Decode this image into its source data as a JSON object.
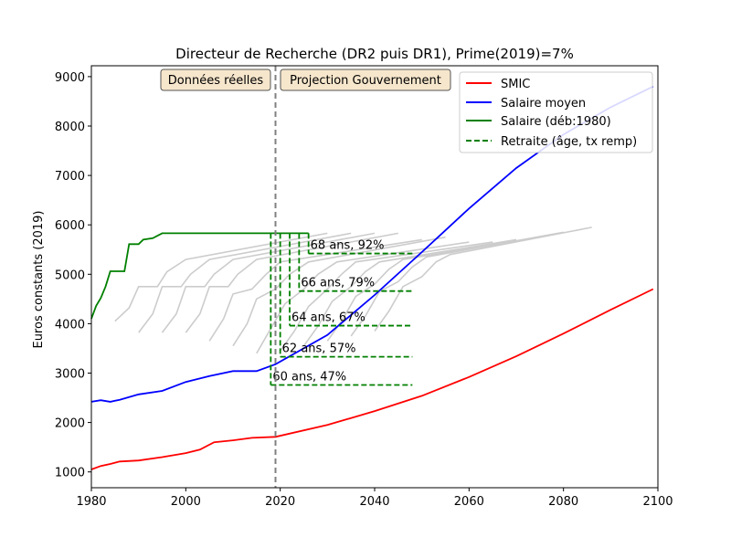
{
  "chart_data": {
    "type": "line",
    "title": "Directeur de Recherche (DR2 puis DR1), Prime(2019)=7%",
    "xlabel": "",
    "ylabel": "Euros constants (2019)",
    "xlim": [
      1980,
      2100
    ],
    "ylim": [
      680,
      9220
    ],
    "xticks": [
      1980,
      2000,
      2020,
      2040,
      2060,
      2080,
      2100
    ],
    "yticks": [
      1000,
      2000,
      3000,
      4000,
      5000,
      6000,
      7000,
      8000,
      9000
    ],
    "grid": false,
    "legend": "top-right",
    "divider_year": 2019,
    "region_labels": {
      "left": "Données réelles",
      "right": "Projection Gouvernement"
    },
    "series": [
      {
        "name": "SMIC",
        "color": "#ff0000",
        "points": [
          [
            1980,
            1050
          ],
          [
            1982,
            1120
          ],
          [
            1984,
            1160
          ],
          [
            1986,
            1210
          ],
          [
            1990,
            1230
          ],
          [
            1995,
            1300
          ],
          [
            2000,
            1380
          ],
          [
            2003,
            1450
          ],
          [
            2006,
            1600
          ],
          [
            2010,
            1640
          ],
          [
            2014,
            1690
          ],
          [
            2019,
            1710
          ],
          [
            2030,
            1950
          ],
          [
            2040,
            2230
          ],
          [
            2050,
            2540
          ],
          [
            2060,
            2920
          ],
          [
            2070,
            3340
          ],
          [
            2080,
            3800
          ],
          [
            2090,
            4280
          ],
          [
            2099,
            4700
          ]
        ]
      },
      {
        "name": "Salaire moyen",
        "color": "#0000ff",
        "points": [
          [
            1980,
            2420
          ],
          [
            1982,
            2450
          ],
          [
            1984,
            2420
          ],
          [
            1986,
            2460
          ],
          [
            1990,
            2570
          ],
          [
            1995,
            2640
          ],
          [
            2000,
            2820
          ],
          [
            2005,
            2940
          ],
          [
            2010,
            3040
          ],
          [
            2015,
            3040
          ],
          [
            2019,
            3180
          ],
          [
            2030,
            3770
          ],
          [
            2040,
            4580
          ],
          [
            2050,
            5450
          ],
          [
            2060,
            6330
          ],
          [
            2070,
            7150
          ],
          [
            2080,
            7830
          ],
          [
            2090,
            8380
          ],
          [
            2099,
            8800
          ]
        ]
      },
      {
        "name": "Salaire (déb:1980)",
        "color": "#008000",
        "points": [
          [
            1980,
            4100
          ],
          [
            1981,
            4360
          ],
          [
            1982,
            4520
          ],
          [
            1983,
            4750
          ],
          [
            1984,
            5060
          ],
          [
            1987,
            5060
          ],
          [
            1988,
            5610
          ],
          [
            1990,
            5610
          ],
          [
            1991,
            5700
          ],
          [
            1993,
            5730
          ],
          [
            1995,
            5830
          ],
          [
            2000,
            5830
          ],
          [
            2010,
            5830
          ],
          [
            2026,
            5830
          ]
        ]
      },
      {
        "name": "Retraite (âge, tx remp)",
        "color": "#008000",
        "dashed": true,
        "levels": [
          {
            "label": "60 ans, 47%",
            "start": 2018,
            "value": 2760
          },
          {
            "label": "62 ans, 57%",
            "start": 2020,
            "value": 3330
          },
          {
            "label": "64 ans, 67%",
            "start": 2022,
            "value": 3960
          },
          {
            "label": "66 ans, 79%",
            "start": 2024,
            "value": 4660
          },
          {
            "label": "68 ans, 92%",
            "start": 2026,
            "value": 5420
          }
        ],
        "end": 2048,
        "top": 5830
      }
    ],
    "grey_cohorts": [
      [
        [
          1985,
          4050
        ],
        [
          1988,
          4320
        ],
        [
          1990,
          4750
        ],
        [
          1994,
          4750
        ],
        [
          1996,
          5050
        ],
        [
          2000,
          5300
        ],
        [
          2030,
          5830
        ]
      ],
      [
        [
          1990,
          3820
        ],
        [
          1993,
          4200
        ],
        [
          1995,
          4750
        ],
        [
          1999,
          4750
        ],
        [
          2001,
          5000
        ],
        [
          2005,
          5300
        ],
        [
          2035,
          5830
        ]
      ],
      [
        [
          1995,
          3820
        ],
        [
          1998,
          4200
        ],
        [
          2000,
          4750
        ],
        [
          2004,
          4750
        ],
        [
          2006,
          5000
        ],
        [
          2010,
          5300
        ],
        [
          2040,
          5830
        ]
      ],
      [
        [
          2000,
          3820
        ],
        [
          2003,
          4200
        ],
        [
          2005,
          4750
        ],
        [
          2009,
          4750
        ],
        [
          2011,
          5000
        ],
        [
          2015,
          5300
        ],
        [
          2045,
          5830
        ]
      ],
      [
        [
          2005,
          3650
        ],
        [
          2008,
          4100
        ],
        [
          2010,
          4600
        ],
        [
          2014,
          4700
        ],
        [
          2017,
          5000
        ],
        [
          2020,
          5250
        ],
        [
          2050,
          5700
        ]
      ],
      [
        [
          2010,
          3550
        ],
        [
          2013,
          4000
        ],
        [
          2015,
          4500
        ],
        [
          2019,
          4700
        ],
        [
          2022,
          5000
        ],
        [
          2026,
          5250
        ],
        [
          2055,
          5750
        ]
      ],
      [
        [
          2015,
          3400
        ],
        [
          2018,
          3900
        ],
        [
          2021,
          4400
        ],
        [
          2025,
          4700
        ],
        [
          2028,
          5000
        ],
        [
          2032,
          5250
        ],
        [
          2060,
          5650
        ]
      ],
      [
        [
          2020,
          3450
        ],
        [
          2023,
          3850
        ],
        [
          2026,
          4350
        ],
        [
          2030,
          4700
        ],
        [
          2033,
          5000
        ],
        [
          2036,
          5250
        ],
        [
          2065,
          5650
        ]
      ],
      [
        [
          2025,
          3550
        ],
        [
          2028,
          3950
        ],
        [
          2031,
          4450
        ],
        [
          2035,
          4750
        ],
        [
          2038,
          5050
        ],
        [
          2041,
          5250
        ],
        [
          2070,
          5700
        ]
      ],
      [
        [
          2030,
          3650
        ],
        [
          2033,
          4050
        ],
        [
          2036,
          4550
        ],
        [
          2040,
          4800
        ],
        [
          2043,
          5100
        ],
        [
          2046,
          5300
        ],
        [
          2075,
          5750
        ]
      ],
      [
        [
          2035,
          3750
        ],
        [
          2038,
          4150
        ],
        [
          2041,
          4650
        ],
        [
          2045,
          4850
        ],
        [
          2048,
          5150
        ],
        [
          2051,
          5350
        ],
        [
          2080,
          5850
        ]
      ],
      [
        [
          2040,
          3850
        ],
        [
          2043,
          4250
        ],
        [
          2046,
          4750
        ],
        [
          2050,
          4950
        ],
        [
          2053,
          5250
        ],
        [
          2056,
          5400
        ],
        [
          2086,
          5950
        ]
      ]
    ]
  }
}
